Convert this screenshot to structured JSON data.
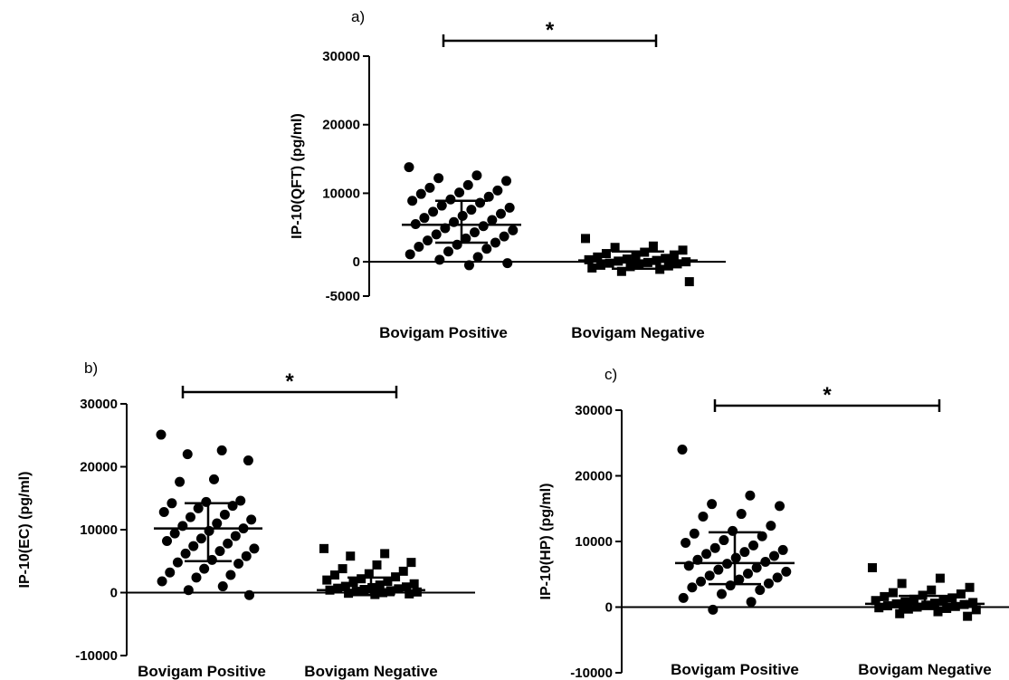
{
  "chart_data": [
    {
      "type": "scatter",
      "panel_label": "a)",
      "ylabel": "IP-10(QFT) (pg/ml)",
      "categories": [
        "Bovigam Positive",
        "Bovigam Negative"
      ],
      "yticks": [
        -5000,
        0,
        10000,
        20000,
        30000
      ],
      "ylim": [
        -5000,
        30000
      ],
      "significance": "*",
      "series": [
        {
          "marker": "circle",
          "mean": 5400,
          "sd_upper": 8900,
          "sd_lower": 2800,
          "values": [
            13800,
            12600,
            12200,
            11800,
            11200,
            10800,
            10400,
            10100,
            9900,
            9500,
            9100,
            8900,
            8600,
            8200,
            7900,
            7600,
            7300,
            7000,
            6700,
            6400,
            6100,
            5800,
            5500,
            5200,
            4900,
            4600,
            4300,
            4000,
            3700,
            3400,
            3100,
            2800,
            2500,
            2200,
            1900,
            1500,
            1100,
            700,
            300,
            -200,
            -500
          ]
        },
        {
          "marker": "square",
          "mean": 200,
          "sd_upper": 1500,
          "sd_lower": -1000,
          "values": [
            3400,
            2300,
            2100,
            1700,
            1400,
            1200,
            1000,
            900,
            700,
            500,
            400,
            300,
            200,
            100,
            0,
            -100,
            -200,
            -300,
            -400,
            -500,
            -600,
            -700,
            -900,
            -1100,
            -1400,
            -2900
          ]
        }
      ]
    },
    {
      "type": "scatter",
      "panel_label": "b)",
      "ylabel": "IP-10(EC) (pg/ml)",
      "categories": [
        "Bovigam Positive",
        "Bovigam Negative"
      ],
      "yticks": [
        -10000,
        0,
        10000,
        20000,
        30000
      ],
      "ylim": [
        -10000,
        30000
      ],
      "significance": "*",
      "series": [
        {
          "marker": "circle",
          "mean": 10200,
          "sd_upper": 14200,
          "sd_lower": 5000,
          "values": [
            25100,
            22600,
            22000,
            21000,
            18000,
            17600,
            14600,
            14400,
            14200,
            13800,
            13400,
            12800,
            12400,
            12000,
            11600,
            11000,
            10600,
            10200,
            9800,
            9400,
            9000,
            8600,
            8200,
            7800,
            7400,
            7000,
            6600,
            6200,
            5800,
            5200,
            4800,
            4600,
            3800,
            3200,
            2800,
            2400,
            1800,
            1000,
            400,
            -400
          ]
        },
        {
          "marker": "square",
          "mean": 400,
          "sd_upper": 2400,
          "sd_lower": -400,
          "values": [
            7000,
            6200,
            5800,
            4800,
            4400,
            3800,
            3400,
            3000,
            2800,
            2500,
            2200,
            2000,
            1800,
            1600,
            1400,
            1200,
            1000,
            900,
            800,
            700,
            600,
            500,
            400,
            300,
            200,
            100,
            0,
            -100,
            -200,
            -300
          ]
        }
      ]
    },
    {
      "type": "scatter",
      "panel_label": "c)",
      "ylabel": "IP-10(HP) (pg/ml)",
      "categories": [
        "Bovigam Positive",
        "Bovigam Negative"
      ],
      "yticks": [
        -10000,
        0,
        10000,
        20000,
        30000
      ],
      "ylim": [
        -10000,
        30000
      ],
      "significance": "*",
      "series": [
        {
          "marker": "circle",
          "mean": 6700,
          "sd_upper": 11400,
          "sd_lower": 3500,
          "values": [
            24000,
            17000,
            15700,
            15400,
            14200,
            13800,
            12400,
            11600,
            11200,
            10800,
            10200,
            9800,
            9400,
            9000,
            8700,
            8400,
            8100,
            7800,
            7500,
            7200,
            6900,
            6600,
            6300,
            6000,
            5700,
            5400,
            5100,
            4800,
            4500,
            4200,
            3900,
            3600,
            3300,
            3000,
            2600,
            2000,
            1400,
            800,
            -400
          ]
        },
        {
          "marker": "square",
          "mean": 500,
          "sd_upper": 1700,
          "sd_lower": -300,
          "values": [
            6000,
            4400,
            3600,
            3000,
            2600,
            2200,
            2000,
            1800,
            1600,
            1400,
            1200,
            1000,
            900,
            800,
            700,
            600,
            500,
            400,
            300,
            200,
            100,
            0,
            -100,
            -200,
            -300,
            -400,
            -700,
            -1000,
            -1400
          ]
        }
      ]
    }
  ]
}
